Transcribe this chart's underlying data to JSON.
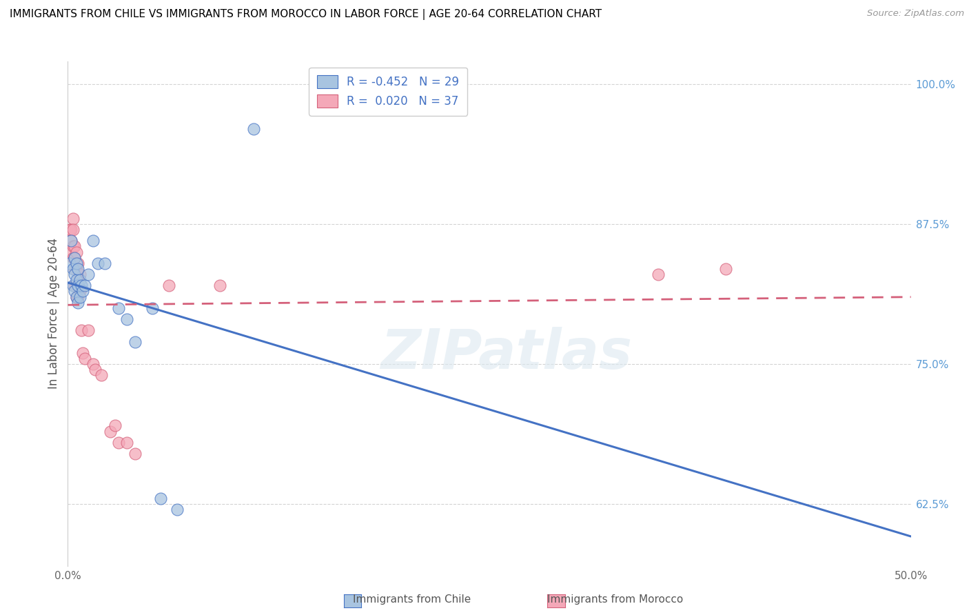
{
  "title": "IMMIGRANTS FROM CHILE VS IMMIGRANTS FROM MOROCCO IN LABOR FORCE | AGE 20-64 CORRELATION CHART",
  "source": "Source: ZipAtlas.com",
  "ylabel": "In Labor Force | Age 20-64",
  "xlim": [
    0.0,
    0.5
  ],
  "ylim": [
    0.57,
    1.02
  ],
  "xticks": [
    0.0,
    0.1,
    0.2,
    0.3,
    0.4,
    0.5
  ],
  "xticklabels": [
    "0.0%",
    "",
    "",
    "",
    "",
    "50.0%"
  ],
  "yticks_right": [
    0.625,
    0.75,
    0.875,
    1.0
  ],
  "yticklabels_right": [
    "62.5%",
    "75.0%",
    "87.5%",
    "100.0%"
  ],
  "watermark": "ZIPatlas",
  "chile_color": "#a8c4e0",
  "morocco_color": "#f4a8b8",
  "chile_line_color": "#4472c4",
  "morocco_line_color": "#d4607a",
  "background_color": "#ffffff",
  "grid_color": "#c8c8c8",
  "right_tick_color": "#5b9bd5",
  "chile_scatter": [
    [
      0.001,
      0.84
    ],
    [
      0.002,
      0.86
    ],
    [
      0.003,
      0.835
    ],
    [
      0.003,
      0.82
    ],
    [
      0.004,
      0.845
    ],
    [
      0.004,
      0.83
    ],
    [
      0.004,
      0.815
    ],
    [
      0.005,
      0.84
    ],
    [
      0.005,
      0.825
    ],
    [
      0.005,
      0.81
    ],
    [
      0.006,
      0.835
    ],
    [
      0.006,
      0.82
    ],
    [
      0.006,
      0.805
    ],
    [
      0.007,
      0.825
    ],
    [
      0.007,
      0.81
    ],
    [
      0.008,
      0.82
    ],
    [
      0.009,
      0.815
    ],
    [
      0.01,
      0.82
    ],
    [
      0.012,
      0.83
    ],
    [
      0.015,
      0.86
    ],
    [
      0.018,
      0.84
    ],
    [
      0.022,
      0.84
    ],
    [
      0.03,
      0.8
    ],
    [
      0.035,
      0.79
    ],
    [
      0.04,
      0.77
    ],
    [
      0.05,
      0.8
    ],
    [
      0.055,
      0.63
    ],
    [
      0.065,
      0.62
    ],
    [
      0.11,
      0.96
    ]
  ],
  "morocco_scatter": [
    [
      0.001,
      0.87
    ],
    [
      0.002,
      0.87
    ],
    [
      0.002,
      0.86
    ],
    [
      0.002,
      0.85
    ],
    [
      0.003,
      0.88
    ],
    [
      0.003,
      0.87
    ],
    [
      0.003,
      0.855
    ],
    [
      0.003,
      0.845
    ],
    [
      0.004,
      0.855
    ],
    [
      0.004,
      0.845
    ],
    [
      0.004,
      0.835
    ],
    [
      0.004,
      0.82
    ],
    [
      0.005,
      0.85
    ],
    [
      0.005,
      0.835
    ],
    [
      0.005,
      0.82
    ],
    [
      0.005,
      0.81
    ],
    [
      0.006,
      0.84
    ],
    [
      0.006,
      0.825
    ],
    [
      0.006,
      0.81
    ],
    [
      0.007,
      0.83
    ],
    [
      0.007,
      0.815
    ],
    [
      0.008,
      0.78
    ],
    [
      0.009,
      0.76
    ],
    [
      0.01,
      0.755
    ],
    [
      0.012,
      0.78
    ],
    [
      0.015,
      0.75
    ],
    [
      0.016,
      0.745
    ],
    [
      0.02,
      0.74
    ],
    [
      0.025,
      0.69
    ],
    [
      0.028,
      0.695
    ],
    [
      0.03,
      0.68
    ],
    [
      0.035,
      0.68
    ],
    [
      0.04,
      0.67
    ],
    [
      0.06,
      0.82
    ],
    [
      0.09,
      0.82
    ],
    [
      0.35,
      0.83
    ],
    [
      0.39,
      0.835
    ]
  ]
}
